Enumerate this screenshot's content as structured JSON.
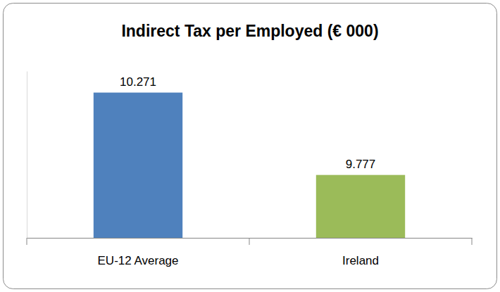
{
  "chart_data": {
    "type": "bar",
    "title": "Indirect Tax per Employed (€ 000)",
    "categories": [
      "EU-12 Average",
      "Ireland"
    ],
    "values": [
      10.271,
      9.777
    ],
    "colors": [
      "#4f81bd",
      "#9bbb59"
    ],
    "ylim": [
      9.4,
      10.4
    ],
    "yticks": [],
    "tick_labels": "x",
    "data_labels": true,
    "grid": false
  }
}
